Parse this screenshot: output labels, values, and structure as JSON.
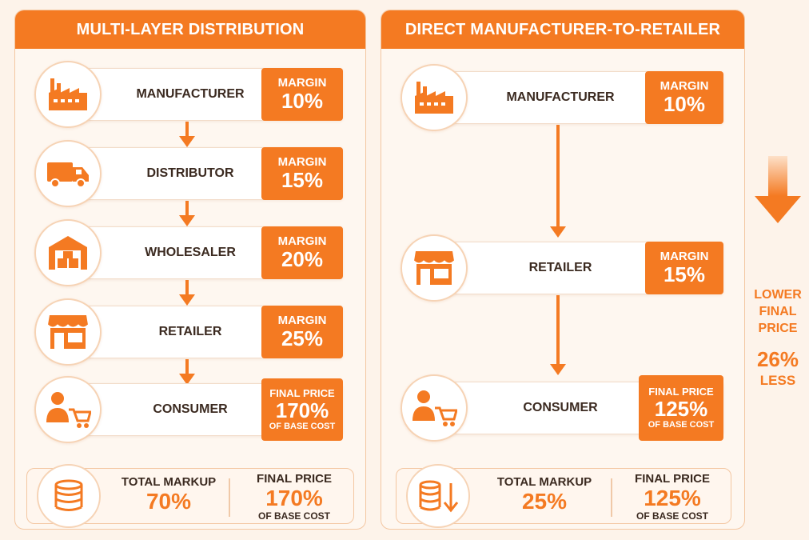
{
  "colors": {
    "accent": "#f47a22",
    "text": "#3b2a20",
    "background": "#fdf3ea"
  },
  "left_panel": {
    "title": "MULTI-LAYER DISTRIBUTION",
    "stages": [
      {
        "icon": "factory-icon",
        "label": "MANUFACTURER",
        "margin_label": "MARGIN",
        "margin_value": "10%"
      },
      {
        "icon": "delivery-truck-icon",
        "label": "DISTRIBUTOR",
        "margin_label": "MARGIN",
        "margin_value": "15%"
      },
      {
        "icon": "warehouse-icon",
        "label": "WHOLESALER",
        "margin_label": "MARGIN",
        "margin_value": "20%"
      },
      {
        "icon": "storefront-icon",
        "label": "RETAILER",
        "margin_label": "MARGIN",
        "margin_value": "25%"
      }
    ],
    "consumer": {
      "icon": "consumer-cart-icon",
      "label": "CONSUMER",
      "final_label": "FINAL PRICE",
      "final_value": "170%",
      "final_sub": "OF BASE COST"
    },
    "summary": {
      "icon": "coin-stack-icon",
      "markup_label": "TOTAL MARKUP",
      "markup_value": "70%",
      "final_label": "FINAL PRICE",
      "final_value": "170%",
      "final_sub": "OF BASE COST"
    }
  },
  "right_panel": {
    "title": "DIRECT MANUFACTURER-TO-RETAILER",
    "stages": [
      {
        "icon": "factory-icon",
        "label": "MANUFACTURER",
        "margin_label": "MARGIN",
        "margin_value": "10%"
      },
      {
        "icon": "storefront-icon",
        "label": "RETAILER",
        "margin_label": "MARGIN",
        "margin_value": "15%"
      }
    ],
    "consumer": {
      "icon": "consumer-cart-icon",
      "label": "CONSUMER",
      "final_label": "FINAL PRICE",
      "final_value": "125%",
      "final_sub": "OF BASE COST"
    },
    "summary": {
      "icon": "coin-stack-down-icon",
      "markup_label": "TOTAL MARKUP",
      "markup_value": "25%",
      "final_label": "FINAL PRICE",
      "final_value": "125%",
      "final_sub": "OF BASE COST"
    }
  },
  "side_note": {
    "line1": "LOWER",
    "line2": "FINAL",
    "line3": "PRICE",
    "value": "26%",
    "suffix": "LESS"
  }
}
